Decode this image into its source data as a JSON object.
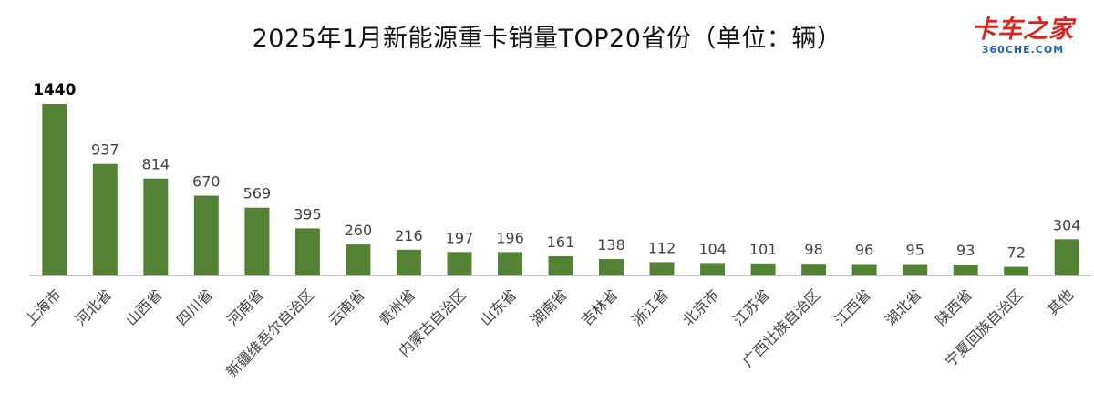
{
  "title": "2025年1月新能源重卡销量TOP20省份（单位：辆）",
  "logo": {
    "main": "卡车之家",
    "sub": "360CHE.COM"
  },
  "colors": {
    "bar": "#548235",
    "axis": "#bfbfbf",
    "label": "#404040",
    "top_label": "#000000",
    "logo_red": "#d9241e",
    "logo_blue": "#1a5fb4"
  },
  "chart_data": {
    "type": "bar",
    "title": "2025年1月新能源重卡销量TOP20省份（单位：辆）",
    "xlabel": "",
    "ylabel": "",
    "ylim": [
      0,
      1440
    ],
    "grid": false,
    "legend": "none",
    "categories": [
      "上海市",
      "河北省",
      "山西省",
      "四川省",
      "河南省",
      "新疆维吾尔自治区",
      "云南省",
      "贵州省",
      "内蒙古自治区",
      "山东省",
      "湖南省",
      "吉林省",
      "浙江省",
      "北京市",
      "江苏省",
      "广西壮族自治区",
      "江西省",
      "湖北省",
      "陕西省",
      "宁夏回族自治区",
      "其他"
    ],
    "values": [
      1440,
      937,
      814,
      670,
      569,
      395,
      260,
      216,
      197,
      196,
      161,
      138,
      112,
      104,
      101,
      98,
      96,
      95,
      93,
      72,
      304
    ],
    "data_labels": [
      "1440",
      "937",
      "814",
      "670",
      "569",
      "395",
      "260",
      "216",
      "197",
      "196",
      "161",
      "138",
      "112",
      "104",
      "101",
      "98",
      "96",
      "95",
      "93",
      "72",
      "304"
    ],
    "highlight_index": 0
  }
}
